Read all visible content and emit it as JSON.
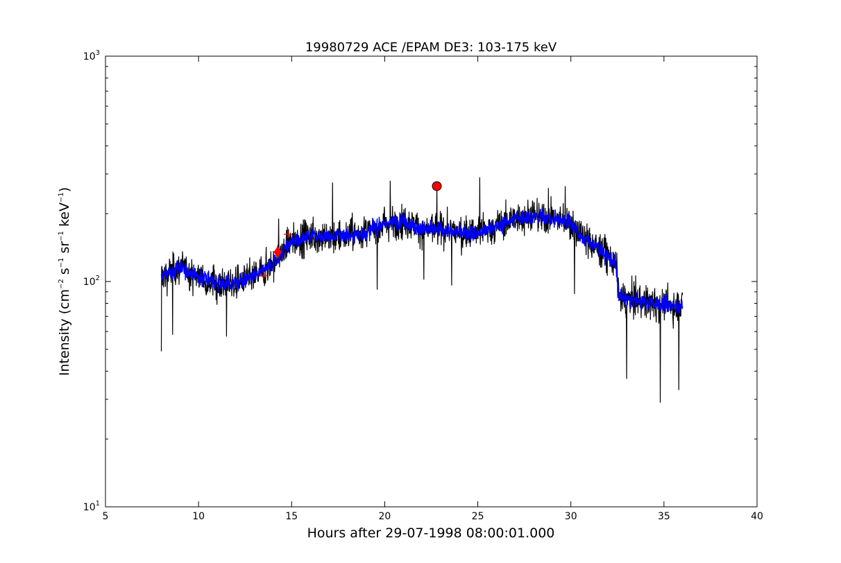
{
  "chart_data": {
    "type": "line",
    "title": "19980729 ACE /EPAM DE3: 103-175 keV",
    "xlabel": "Hours after 29-07-1998 08:00:01.000",
    "ylabel": {
      "prefix": "Intensity (cm",
      "sup1": "−2",
      "mid1": " s",
      "sup2": "−1",
      "mid2": " sr",
      "sup3": "−1",
      "mid3": " keV",
      "sup4": "−1",
      "suffix": ")"
    },
    "xlim": [
      5,
      40
    ],
    "ylim": [
      10,
      1000
    ],
    "yscale": "log",
    "grid": false,
    "x_ticks": [
      {
        "value": 5,
        "label": "5"
      },
      {
        "value": 10,
        "label": "10"
      },
      {
        "value": 15,
        "label": "15"
      },
      {
        "value": 20,
        "label": "20"
      },
      {
        "value": 25,
        "label": "25"
      },
      {
        "value": 30,
        "label": "30"
      },
      {
        "value": 35,
        "label": "35"
      },
      {
        "value": 40,
        "label": "40"
      }
    ],
    "y_ticks": [
      {
        "value": 10,
        "base": "10",
        "exp": "1"
      },
      {
        "value": 100,
        "base": "10",
        "exp": "2"
      },
      {
        "value": 1000,
        "base": "10",
        "exp": "3"
      }
    ],
    "series": [
      {
        "role": "raw intensity",
        "color": "#000000",
        "x_range": [
          8.0,
          36.0
        ],
        "trend": [
          [
            8.0,
            105
          ],
          [
            9.0,
            115
          ],
          [
            10.0,
            105
          ],
          [
            11.0,
            98
          ],
          [
            12.0,
            98
          ],
          [
            13.0,
            105
          ],
          [
            14.0,
            120
          ],
          [
            15.0,
            150
          ],
          [
            16.0,
            160
          ],
          [
            17.0,
            158
          ],
          [
            18.0,
            160
          ],
          [
            19.0,
            165
          ],
          [
            20.0,
            180
          ],
          [
            21.0,
            185
          ],
          [
            22.0,
            170
          ],
          [
            23.0,
            170
          ],
          [
            24.0,
            165
          ],
          [
            25.0,
            165
          ],
          [
            26.0,
            175
          ],
          [
            27.0,
            190
          ],
          [
            28.0,
            195
          ],
          [
            29.0,
            190
          ],
          [
            29.9,
            185
          ],
          [
            30.5,
            160
          ],
          [
            31.5,
            140
          ],
          [
            32.4,
            120
          ],
          [
            32.6,
            85
          ],
          [
            33.5,
            82
          ],
          [
            34.5,
            80
          ],
          [
            35.5,
            78
          ],
          [
            36.0,
            78
          ]
        ],
        "spikes": [
          [
            8.0,
            49
          ],
          [
            8.6,
            58
          ],
          [
            11.5,
            57
          ],
          [
            14.3,
            190
          ],
          [
            17.2,
            275
          ],
          [
            19.6,
            92
          ],
          [
            20.3,
            280
          ],
          [
            22.1,
            102
          ],
          [
            22.8,
            270
          ],
          [
            23.6,
            96
          ],
          [
            25.1,
            290
          ],
          [
            28.8,
            260
          ],
          [
            29.7,
            265
          ],
          [
            30.2,
            88
          ],
          [
            33.0,
            37
          ],
          [
            34.8,
            29
          ],
          [
            35.8,
            33
          ]
        ]
      },
      {
        "role": "smoothed intensity",
        "color": "#0000ff",
        "x_range": [
          8.0,
          36.0
        ]
      }
    ],
    "markers": [
      {
        "shape": "plus",
        "x": 13.5,
        "y": 106,
        "color": "#ff0000"
      },
      {
        "shape": "plus",
        "x": 14.8,
        "y": 162,
        "color": "#ff0000"
      },
      {
        "shape": "diamond",
        "x": 14.25,
        "y": 135,
        "color": "#ff0000"
      },
      {
        "shape": "circle",
        "x": 22.8,
        "y": 265,
        "color": "#ff0000"
      }
    ]
  }
}
